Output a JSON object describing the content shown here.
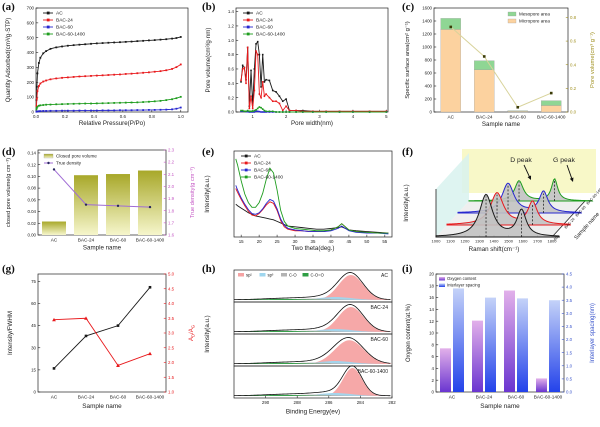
{
  "background": "#ffffff",
  "sample_names": [
    "AC",
    "BAC-24",
    "BAC-60",
    "BAC-60-1400"
  ],
  "chart_data": [
    {
      "id": "a",
      "panel_label": "(a)",
      "type": "line",
      "xlabel": "Relative Pressure(P/Po)",
      "ylabel": "Quantity Adsorbed(cm³/g·STP)",
      "xlim": [
        0,
        1.05
      ],
      "ylim": [
        0,
        700
      ],
      "xticks": [
        0.0,
        0.2,
        0.4,
        0.6,
        0.8,
        1.0
      ],
      "xtick_dec": 1,
      "yticks": [
        0,
        100,
        200,
        300,
        400,
        500,
        600,
        700
      ],
      "ytick_dec": 0,
      "x": [
        0.003,
        0.006,
        0.01,
        0.02,
        0.03,
        0.05,
        0.07,
        0.1,
        0.14,
        0.18,
        0.22,
        0.26,
        0.3,
        0.34,
        0.38,
        0.42,
        0.46,
        0.5,
        0.54,
        0.58,
        0.62,
        0.66,
        0.7,
        0.74,
        0.78,
        0.82,
        0.86,
        0.9,
        0.94,
        0.97,
        1.0
      ],
      "series": [
        {
          "name": "AC",
          "color": "#1a1a1a",
          "y": [
            80,
            170,
            260,
            330,
            365,
            395,
            410,
            425,
            435,
            441,
            446,
            450,
            453,
            456,
            459,
            462,
            464,
            466,
            468,
            470,
            472,
            474,
            477,
            479,
            482,
            484,
            487,
            490,
            494,
            498,
            505
          ]
        },
        {
          "name": "BAC-24",
          "color": "#e8191c",
          "y": [
            40,
            90,
            140,
            175,
            192,
            205,
            212,
            220,
            226,
            230,
            233,
            236,
            239,
            241,
            243,
            245,
            247,
            249,
            251,
            253,
            256,
            258,
            261,
            264,
            267,
            271,
            275,
            281,
            290,
            302,
            320
          ]
        },
        {
          "name": "BAC-60",
          "color": "#2727cf",
          "y": [
            2,
            3,
            4,
            5,
            6,
            7,
            7,
            8,
            8,
            9,
            9,
            9,
            10,
            10,
            10,
            10,
            11,
            11,
            11,
            12,
            12,
            12,
            13,
            13,
            14,
            14,
            15,
            16,
            18,
            22,
            30
          ]
        },
        {
          "name": "BAC-60-1400",
          "color": "#1f9d1f",
          "y": [
            18,
            28,
            36,
            42,
            45,
            47,
            49,
            50,
            52,
            53,
            54,
            55,
            56,
            57,
            57,
            58,
            59,
            60,
            61,
            62,
            63,
            64,
            65,
            67,
            69,
            72,
            75,
            80,
            86,
            93,
            102
          ]
        }
      ]
    },
    {
      "id": "b",
      "panel_label": "(b)",
      "type": "line",
      "xlabel": "Pore width(nm)",
      "ylabel": "Pore volume(cm³/g·nm)",
      "xlim": [
        0.5,
        5.05
      ],
      "ylim": [
        0,
        1.45
      ],
      "xticks": [
        1,
        2,
        3,
        4,
        5
      ],
      "xtick_dec": 0,
      "yticks": [
        0.0,
        0.2,
        0.4,
        0.6,
        0.8,
        1.0,
        1.2,
        1.4
      ],
      "ytick_dec": 1,
      "x": [
        0.65,
        0.7,
        0.75,
        0.8,
        0.85,
        0.9,
        0.95,
        1.0,
        1.05,
        1.1,
        1.15,
        1.2,
        1.25,
        1.3,
        1.35,
        1.4,
        1.5,
        1.6,
        1.7,
        1.8,
        1.9,
        2.0,
        2.1,
        2.3,
        2.5,
        2.8,
        3.2,
        3.6,
        4.0,
        4.5,
        5.0
      ],
      "series": [
        {
          "name": "AC",
          "color": "#1a1a1a",
          "y": [
            0.42,
            0.65,
            0.62,
            0.45,
            0.9,
            0.08,
            0.58,
            0.1,
            0.6,
            0.95,
            0.98,
            0.8,
            0.35,
            0.8,
            0.42,
            0.45,
            0.44,
            0.3,
            0.28,
            0.22,
            0.15,
            0.18,
            0.02,
            0.02,
            0.02,
            0.01,
            0.01,
            0.01,
            0.01,
            0.01,
            0.01
          ]
        },
        {
          "name": "BAC-24",
          "color": "#e8191c",
          "y": [
            0.44,
            0.6,
            0.62,
            0.4,
            0.9,
            0.05,
            0.22,
            0.05,
            0.3,
            0.85,
            0.8,
            0.25,
            0.2,
            0.42,
            0.22,
            0.25,
            0.2,
            0.15,
            0.15,
            0.12,
            0.02,
            0.08,
            0.02,
            0.02,
            0.01,
            0.01,
            0.01,
            0.01,
            0.01,
            0.01,
            0.01
          ]
        },
        {
          "name": "BAC-60",
          "color": "#2727cf",
          "y": [
            0.01,
            0.01,
            0.01,
            0.005,
            0.005,
            0,
            0,
            0,
            0,
            0.01,
            0.01,
            0.005,
            0,
            0,
            0,
            0,
            0,
            0,
            0,
            0,
            0,
            0,
            0,
            0,
            0,
            0,
            0,
            0,
            0,
            0,
            0
          ]
        },
        {
          "name": "BAC-60-1400",
          "color": "#1f9d1f",
          "y": [
            0.02,
            0.02,
            0.01,
            0.01,
            0.02,
            0.01,
            0.01,
            0.01,
            0.02,
            0.03,
            0.05,
            0.07,
            0.06,
            0.04,
            0.02,
            0.01,
            0.01,
            0.01,
            0,
            0,
            0,
            0,
            0,
            0,
            0,
            0,
            0,
            0,
            0,
            0,
            0
          ]
        }
      ]
    },
    {
      "id": "c",
      "panel_label": "(c)",
      "type": "stacked-bar-line",
      "xlabel": "Sample name",
      "ylabel_left": "Specific surface area(cm² g⁻¹)",
      "ylabel_right": "Pore volume(cm³ g⁻¹)",
      "ylim_left": [
        0,
        1600
      ],
      "yticks_left": [
        0,
        200,
        400,
        600,
        800,
        1000,
        1200,
        1400,
        1600
      ],
      "ylim_right": [
        0,
        0.88
      ],
      "yticks_right": [
        0.0,
        0.2,
        0.4,
        0.6,
        0.8
      ],
      "legend": [
        "Mesopore area",
        "Micropore area"
      ],
      "mesopore_color": "#8fd694",
      "micropore_color": "#fcd29f",
      "line_color": "#d8d39b",
      "marker_color": "#3c3c08",
      "right_axis_color": "#a09020",
      "micropore_area": [
        1270,
        650,
        12,
        100
      ],
      "mesopore_area": [
        170,
        140,
        8,
        75
      ],
      "pore_volume": [
        0.72,
        0.47,
        0.04,
        0.16
      ]
    },
    {
      "id": "d",
      "panel_label": "(d)",
      "type": "bar-line",
      "xlabel": "Sample name",
      "ylabel_left": "closed pore volume(g cm⁻³)",
      "ylabel_right": "True density(g cm⁻³)",
      "ylim_left": [
        0,
        0.145
      ],
      "yticks_left": [
        0.0,
        0.02,
        0.04,
        0.06,
        0.08,
        0.1,
        0.12,
        0.14
      ],
      "ylim_right": [
        1.6,
        2.3
      ],
      "yticks_right": [
        1.6,
        1.7,
        1.8,
        1.9,
        2.0,
        2.1,
        2.2,
        2.3
      ],
      "legend": [
        "Closed pore volume",
        "True density"
      ],
      "bar_top_color": "#a8a82a",
      "bar_bottom_color": "#f6f6cc",
      "line_color": "#a06cd5",
      "marker_color": "#27275e",
      "right_axis_color": "#c455c4",
      "closed_pore_volume": [
        0.023,
        0.102,
        0.104,
        0.11
      ],
      "true_density": [
        2.14,
        1.85,
        1.84,
        1.83
      ]
    },
    {
      "id": "e",
      "panel_label": "(e)",
      "type": "line",
      "xlabel": "Two theta(deg.)",
      "ylabel": "Intensity(a.u.)",
      "xlim": [
        13,
        57
      ],
      "ylim": [
        0,
        1.1
      ],
      "xticks": [
        15,
        20,
        25,
        30,
        35,
        40,
        45,
        50,
        55
      ],
      "xtick_dec": 0,
      "yticks": [],
      "ytick_dec": 0,
      "x": [
        13.5,
        14,
        15,
        16,
        17,
        18,
        19,
        20,
        21,
        22,
        23,
        24,
        25,
        26,
        27,
        28,
        30,
        32,
        34,
        36,
        38,
        40,
        42,
        43,
        44,
        45,
        47,
        50,
        53,
        56
      ],
      "series": [
        {
          "name": "AC",
          "color": "#1a1a1a",
          "y": [
            0.42,
            0.4,
            0.37,
            0.34,
            0.31,
            0.29,
            0.27,
            0.26,
            0.25,
            0.24,
            0.23,
            0.22,
            0.2,
            0.18,
            0.16,
            0.14,
            0.13,
            0.12,
            0.11,
            0.1,
            0.1,
            0.11,
            0.12,
            0.13,
            0.11,
            0.09,
            0.08,
            0.07,
            0.06,
            0.05
          ]
        },
        {
          "name": "BAC-24",
          "color": "#e8191c",
          "y": [
            0.62,
            0.57,
            0.48,
            0.4,
            0.33,
            0.28,
            0.27,
            0.3,
            0.35,
            0.41,
            0.45,
            0.43,
            0.34,
            0.21,
            0.13,
            0.1,
            0.08,
            0.08,
            0.07,
            0.07,
            0.07,
            0.09,
            0.13,
            0.17,
            0.13,
            0.09,
            0.07,
            0.06,
            0.05,
            0.05
          ]
        },
        {
          "name": "BAC-60",
          "color": "#2727cf",
          "y": [
            0.66,
            0.6,
            0.5,
            0.42,
            0.35,
            0.3,
            0.29,
            0.31,
            0.36,
            0.43,
            0.48,
            0.46,
            0.36,
            0.23,
            0.15,
            0.11,
            0.09,
            0.08,
            0.07,
            0.07,
            0.07,
            0.08,
            0.11,
            0.14,
            0.11,
            0.08,
            0.06,
            0.05,
            0.05,
            0.04
          ]
        },
        {
          "name": "BAC-60-1400",
          "color": "#1f9d1f",
          "y": [
            1.0,
            0.92,
            0.72,
            0.55,
            0.44,
            0.38,
            0.38,
            0.44,
            0.56,
            0.74,
            0.88,
            0.82,
            0.6,
            0.34,
            0.2,
            0.14,
            0.11,
            0.1,
            0.09,
            0.08,
            0.08,
            0.09,
            0.13,
            0.17,
            0.13,
            0.09,
            0.07,
            0.06,
            0.05,
            0.05
          ]
        }
      ]
    },
    {
      "id": "f",
      "panel_label": "(f)",
      "type": "raman-waterfall",
      "xlabel": "Raman shift(cm⁻¹)",
      "ylabel": "Intensity(a.u.)",
      "right_label": "Sample name",
      "xticks": [
        1000,
        1100,
        1200,
        1300,
        1400,
        1500,
        1600,
        1700,
        1800
      ],
      "d_peak_label": "D peak",
      "g_peak_label": "G peak",
      "d_peak_center": 1345,
      "g_peak_center": 1590,
      "top_bg": "#f8f8c8",
      "side_bg": "#d8f2ee",
      "fill_color": "#c2c2c2",
      "series": [
        {
          "name": "AC",
          "color": "#1a1a1a",
          "d": 1.0,
          "g": 0.62,
          "wd": 55,
          "wg": 38
        },
        {
          "name": "BAC-24",
          "color": "#e8191c",
          "d": 0.76,
          "g": 0.54,
          "wd": 55,
          "wg": 38
        },
        {
          "name": "BAC-60",
          "color": "#2727cf",
          "d": 0.7,
          "g": 0.5,
          "wd": 50,
          "wg": 36
        },
        {
          "name": "BAC-60-1400",
          "color": "#1f9d1f",
          "d": 0.48,
          "g": 0.52,
          "wd": 36,
          "wg": 26
        }
      ]
    },
    {
      "id": "g",
      "panel_label": "(g)",
      "type": "dual-line",
      "xlabel": "Sample name",
      "ylabel_left": "Intensity/FWHM",
      "ylabel_right_rich": [
        {
          "t": "A",
          "sub": false
        },
        {
          "t": "D",
          "sub": true
        },
        {
          "t": "/A",
          "sub": false
        },
        {
          "t": "G",
          "sub": true
        }
      ],
      "ylim_left": [
        0,
        80
      ],
      "yticks_left": [
        0,
        15,
        30,
        45,
        60,
        75
      ],
      "ylim_right": [
        1.0,
        5.0
      ],
      "yticks_right": [
        1.0,
        1.5,
        2.0,
        2.5,
        3.0,
        3.5,
        4.0,
        4.5,
        5.0
      ],
      "series": [
        {
          "name": "Intensity/FWHM",
          "color": "#1a1a1a",
          "y": [
            16,
            38,
            45,
            71
          ]
        },
        {
          "name": "AD/AG",
          "color": "#e8191c",
          "y": [
            3.45,
            3.5,
            1.9,
            2.3
          ]
        }
      ]
    },
    {
      "id": "h",
      "panel_label": "(h)",
      "type": "xps-stack",
      "xlabel": "Binding Energy(ev)",
      "ylabel": "Intensity(a.u.)",
      "xticks": [
        290,
        288,
        286,
        284,
        282
      ],
      "xlim": [
        292,
        282
      ],
      "legend": [
        {
          "label": "sp²",
          "color": "#f5a3a3"
        },
        {
          "label": "sp³",
          "color": "#9fd6ee"
        },
        {
          "label": "C-O",
          "color": "#b3b3b3"
        },
        {
          "label": "C-O=O",
          "color": "#2f9e44"
        }
      ],
      "components": {
        "sp3": {
          "center": 285.6,
          "width": 1.05,
          "height": 0.12
        },
        "c_o": {
          "center": 287.0,
          "width": 1.3,
          "height": 0.055
        },
        "c_o_o": {
          "center": 289.0,
          "width": 1.3,
          "height": 0.045
        }
      },
      "samples": [
        {
          "name": "AC",
          "main_center": 284.6,
          "main_width": 0.78,
          "main_height": 1.0
        },
        {
          "name": "BAC-24",
          "main_center": 284.6,
          "main_width": 0.8,
          "main_height": 1.0
        },
        {
          "name": "BAC-60",
          "main_center": 284.7,
          "main_width": 0.92,
          "main_height": 0.95
        },
        {
          "name": "BAC-60-1400",
          "main_center": 284.5,
          "main_width": 0.6,
          "main_height": 1.12
        }
      ]
    },
    {
      "id": "i",
      "panel_label": "(i)",
      "type": "dual-bar",
      "xlabel": "Sample name",
      "ylabel_left": "Oxygen content(at.%)",
      "ylabel_right": "Interlayer spacing(nm)",
      "ylim_left": [
        0,
        20
      ],
      "yticks_left": [
        0,
        2,
        4,
        6,
        8,
        10,
        12,
        14,
        16,
        18,
        20
      ],
      "ylim_right": [
        0,
        4.5
      ],
      "yticks_right": [
        0.0,
        0.5,
        1.0,
        1.5,
        2.0,
        2.5,
        3.0,
        3.5,
        4.0,
        4.5
      ],
      "legend": [
        "Oxygen content",
        "Interlayer spacing"
      ],
      "oxygen_top_color": "#e2b0ea",
      "oxygen_bottom_color": "#6a35d0",
      "spacing_top_color": "#c4d2f8",
      "spacing_bottom_color": "#2342ea",
      "right_axis_color": "#3a55cc",
      "oxygen_content": [
        7.4,
        12.1,
        17.2,
        2.3
      ],
      "interlayer_spacing": [
        3.95,
        3.6,
        3.57,
        3.5
      ]
    }
  ]
}
